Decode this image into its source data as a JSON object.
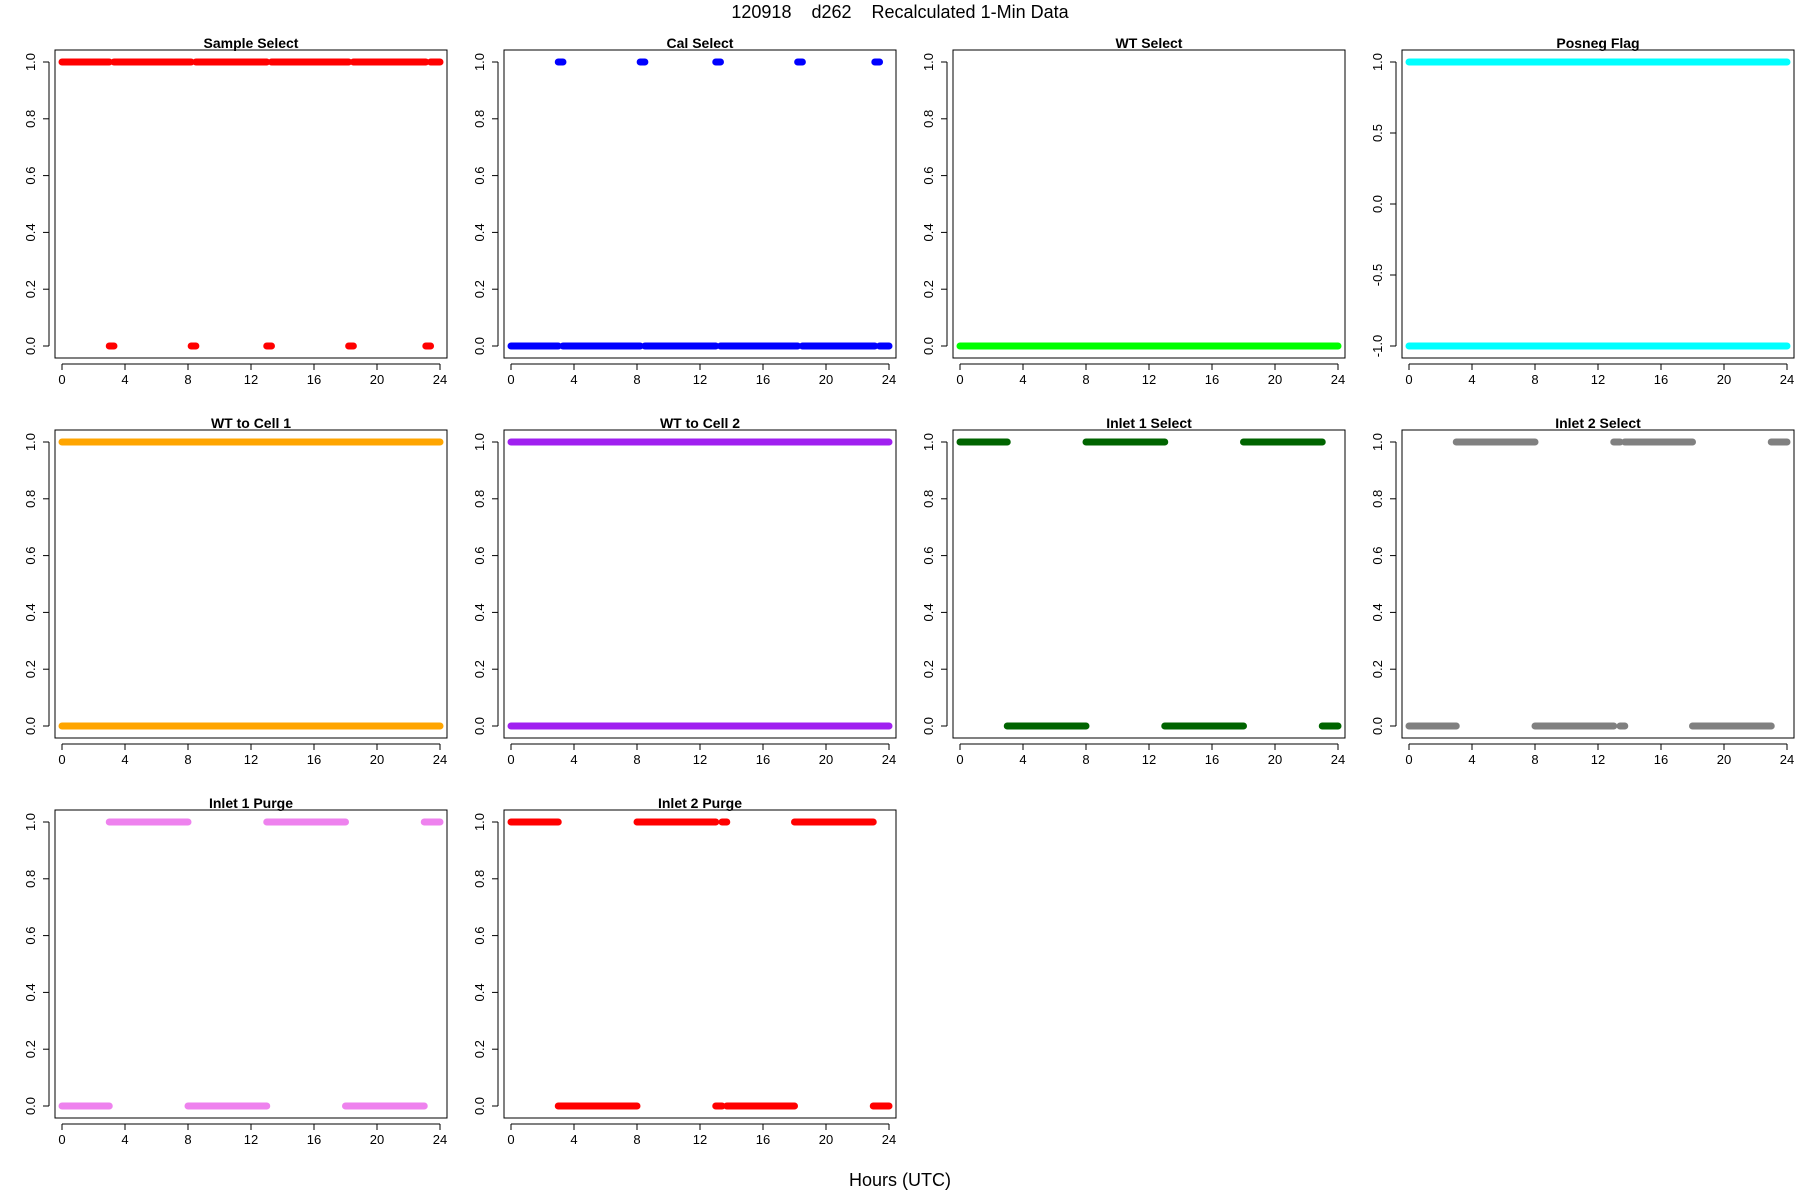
{
  "figure": {
    "title": "120918    d262    Recalculated 1-Min Data",
    "xlabel": "Hours (UTC)"
  },
  "chart_data": [
    {
      "type": "scatter",
      "title": "Sample Select",
      "color": "#ff0000",
      "xlim": [
        0,
        24
      ],
      "ylim": [
        0,
        1
      ],
      "xticks": [
        0,
        4,
        8,
        12,
        16,
        20,
        24
      ],
      "yticks": [
        0.0,
        0.2,
        0.4,
        0.6,
        0.8,
        1.0
      ],
      "ytick_labels": [
        "0.0",
        "0.2",
        "0.4",
        "0.6",
        "0.8",
        "1.0"
      ],
      "segments": [
        {
          "y": 1,
          "x": [
            0.0,
            3.0
          ]
        },
        {
          "y": 1,
          "x": [
            3.3,
            8.2
          ]
        },
        {
          "y": 1,
          "x": [
            8.5,
            13.0
          ]
        },
        {
          "y": 1,
          "x": [
            13.3,
            18.2
          ]
        },
        {
          "y": 1,
          "x": [
            18.5,
            23.1
          ]
        },
        {
          "y": 1,
          "x": [
            23.4,
            24.0
          ]
        },
        {
          "y": 0,
          "x": [
            3.0,
            3.3
          ]
        },
        {
          "y": 0,
          "x": [
            8.2,
            8.5
          ]
        },
        {
          "y": 0,
          "x": [
            13.0,
            13.3
          ]
        },
        {
          "y": 0,
          "x": [
            18.2,
            18.5
          ]
        },
        {
          "y": 0,
          "x": [
            23.1,
            23.4
          ]
        }
      ]
    },
    {
      "type": "scatter",
      "title": "Cal Select",
      "color": "#0000ff",
      "xlim": [
        0,
        24
      ],
      "ylim": [
        0,
        1
      ],
      "xticks": [
        0,
        4,
        8,
        12,
        16,
        20,
        24
      ],
      "yticks": [
        0.0,
        0.2,
        0.4,
        0.6,
        0.8,
        1.0
      ],
      "ytick_labels": [
        "0.0",
        "0.2",
        "0.4",
        "0.6",
        "0.8",
        "1.0"
      ],
      "segments": [
        {
          "y": 0,
          "x": [
            0.0,
            3.0
          ]
        },
        {
          "y": 0,
          "x": [
            3.3,
            8.2
          ]
        },
        {
          "y": 0,
          "x": [
            8.5,
            13.0
          ]
        },
        {
          "y": 0,
          "x": [
            13.3,
            18.2
          ]
        },
        {
          "y": 0,
          "x": [
            18.5,
            23.1
          ]
        },
        {
          "y": 0,
          "x": [
            23.4,
            24.0
          ]
        },
        {
          "y": 1,
          "x": [
            3.0,
            3.3
          ]
        },
        {
          "y": 1,
          "x": [
            8.2,
            8.5
          ]
        },
        {
          "y": 1,
          "x": [
            13.0,
            13.3
          ]
        },
        {
          "y": 1,
          "x": [
            18.2,
            18.5
          ]
        },
        {
          "y": 1,
          "x": [
            23.1,
            23.4
          ]
        }
      ]
    },
    {
      "type": "scatter",
      "title": "WT Select",
      "color": "#00ff00",
      "xlim": [
        0,
        24
      ],
      "ylim": [
        0,
        1
      ],
      "xticks": [
        0,
        4,
        8,
        12,
        16,
        20,
        24
      ],
      "yticks": [
        0.0,
        0.2,
        0.4,
        0.6,
        0.8,
        1.0
      ],
      "ytick_labels": [
        "0.0",
        "0.2",
        "0.4",
        "0.6",
        "0.8",
        "1.0"
      ],
      "segments": [
        {
          "y": 0,
          "x": [
            0.0,
            24.0
          ]
        }
      ]
    },
    {
      "type": "scatter",
      "title": "Posneg Flag",
      "color": "#00ffff",
      "xlim": [
        0,
        24
      ],
      "ylim": [
        -1,
        1
      ],
      "xticks": [
        0,
        4,
        8,
        12,
        16,
        20,
        24
      ],
      "yticks": [
        -1.0,
        -0.5,
        0.0,
        0.5,
        1.0
      ],
      "ytick_labels": [
        "-1.0",
        "-0.5",
        "0.0",
        "0.5",
        "1.0"
      ],
      "segments": [
        {
          "y": 1,
          "x": [
            0.0,
            24.0
          ]
        },
        {
          "y": -1,
          "x": [
            0.0,
            24.0
          ]
        }
      ]
    },
    {
      "type": "scatter",
      "title": "WT to Cell 1",
      "color": "#ffa500",
      "xlim": [
        0,
        24
      ],
      "ylim": [
        0,
        1
      ],
      "xticks": [
        0,
        4,
        8,
        12,
        16,
        20,
        24
      ],
      "yticks": [
        0.0,
        0.2,
        0.4,
        0.6,
        0.8,
        1.0
      ],
      "ytick_labels": [
        "0.0",
        "0.2",
        "0.4",
        "0.6",
        "0.8",
        "1.0"
      ],
      "segments": [
        {
          "y": 1,
          "x": [
            0.0,
            24.0
          ]
        },
        {
          "y": 0,
          "x": [
            0.0,
            24.0
          ]
        }
      ]
    },
    {
      "type": "scatter",
      "title": "WT to Cell 2",
      "color": "#a020f0",
      "xlim": [
        0,
        24
      ],
      "ylim": [
        0,
        1
      ],
      "xticks": [
        0,
        4,
        8,
        12,
        16,
        20,
        24
      ],
      "yticks": [
        0.0,
        0.2,
        0.4,
        0.6,
        0.8,
        1.0
      ],
      "ytick_labels": [
        "0.0",
        "0.2",
        "0.4",
        "0.6",
        "0.8",
        "1.0"
      ],
      "segments": [
        {
          "y": 1,
          "x": [
            0.0,
            24.0
          ]
        },
        {
          "y": 0,
          "x": [
            0.0,
            24.0
          ]
        }
      ]
    },
    {
      "type": "scatter",
      "title": "Inlet 1 Select",
      "color": "#006400",
      "xlim": [
        0,
        24
      ],
      "ylim": [
        0,
        1
      ],
      "xticks": [
        0,
        4,
        8,
        12,
        16,
        20,
        24
      ],
      "yticks": [
        0.0,
        0.2,
        0.4,
        0.6,
        0.8,
        1.0
      ],
      "ytick_labels": [
        "0.0",
        "0.2",
        "0.4",
        "0.6",
        "0.8",
        "1.0"
      ],
      "segments": [
        {
          "y": 1,
          "x": [
            0.0,
            3.0
          ]
        },
        {
          "y": 1,
          "x": [
            8.0,
            13.0
          ]
        },
        {
          "y": 1,
          "x": [
            18.0,
            23.0
          ]
        },
        {
          "y": 0,
          "x": [
            3.0,
            8.0
          ]
        },
        {
          "y": 0,
          "x": [
            13.0,
            18.0
          ]
        },
        {
          "y": 0,
          "x": [
            23.0,
            24.0
          ]
        }
      ]
    },
    {
      "type": "scatter",
      "title": "Inlet 2 Select",
      "color": "#808080",
      "xlim": [
        0,
        24
      ],
      "ylim": [
        0,
        1
      ],
      "xticks": [
        0,
        4,
        8,
        12,
        16,
        20,
        24
      ],
      "yticks": [
        0.0,
        0.2,
        0.4,
        0.6,
        0.8,
        1.0
      ],
      "ytick_labels": [
        "0.0",
        "0.2",
        "0.4",
        "0.6",
        "0.8",
        "1.0"
      ],
      "segments": [
        {
          "y": 0,
          "x": [
            0.0,
            3.0
          ]
        },
        {
          "y": 1,
          "x": [
            3.0,
            8.0
          ]
        },
        {
          "y": 0,
          "x": [
            8.0,
            13.0
          ]
        },
        {
          "y": 1,
          "x": [
            13.0,
            13.4
          ]
        },
        {
          "y": 0,
          "x": [
            13.4,
            13.7
          ]
        },
        {
          "y": 1,
          "x": [
            13.7,
            18.0
          ]
        },
        {
          "y": 0,
          "x": [
            18.0,
            23.0
          ]
        },
        {
          "y": 1,
          "x": [
            23.0,
            24.0
          ]
        }
      ]
    },
    {
      "type": "scatter",
      "title": "Inlet 1 Purge",
      "color": "#ee82ee",
      "xlim": [
        0,
        24
      ],
      "ylim": [
        0,
        1
      ],
      "xticks": [
        0,
        4,
        8,
        12,
        16,
        20,
        24
      ],
      "yticks": [
        0.0,
        0.2,
        0.4,
        0.6,
        0.8,
        1.0
      ],
      "ytick_labels": [
        "0.0",
        "0.2",
        "0.4",
        "0.6",
        "0.8",
        "1.0"
      ],
      "segments": [
        {
          "y": 0,
          "x": [
            0.0,
            3.0
          ]
        },
        {
          "y": 1,
          "x": [
            3.0,
            8.0
          ]
        },
        {
          "y": 0,
          "x": [
            8.0,
            13.0
          ]
        },
        {
          "y": 1,
          "x": [
            13.0,
            18.0
          ]
        },
        {
          "y": 0,
          "x": [
            18.0,
            23.0
          ]
        },
        {
          "y": 1,
          "x": [
            23.0,
            24.0
          ]
        }
      ]
    },
    {
      "type": "scatter",
      "title": "Inlet 2 Purge",
      "color": "#ff0000",
      "xlim": [
        0,
        24
      ],
      "ylim": [
        0,
        1
      ],
      "xticks": [
        0,
        4,
        8,
        12,
        16,
        20,
        24
      ],
      "yticks": [
        0.0,
        0.2,
        0.4,
        0.6,
        0.8,
        1.0
      ],
      "ytick_labels": [
        "0.0",
        "0.2",
        "0.4",
        "0.6",
        "0.8",
        "1.0"
      ],
      "segments": [
        {
          "y": 1,
          "x": [
            0.0,
            3.0
          ]
        },
        {
          "y": 0,
          "x": [
            3.0,
            8.0
          ]
        },
        {
          "y": 1,
          "x": [
            8.0,
            13.0
          ]
        },
        {
          "y": 0,
          "x": [
            13.0,
            13.4
          ]
        },
        {
          "y": 1,
          "x": [
            13.4,
            13.7
          ]
        },
        {
          "y": 0,
          "x": [
            13.7,
            18.0
          ]
        },
        {
          "y": 1,
          "x": [
            18.0,
            23.0
          ]
        },
        {
          "y": 0,
          "x": [
            23.0,
            24.0
          ]
        }
      ]
    }
  ]
}
